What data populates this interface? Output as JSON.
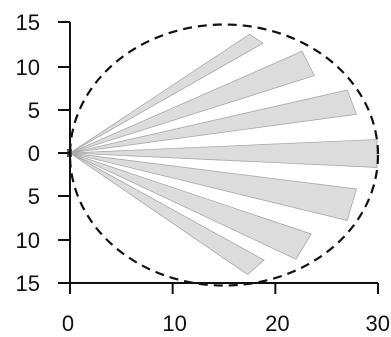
{
  "chart_data": {
    "type": "diagram",
    "y_ticks": [
      "15",
      "10",
      "5",
      "0",
      "5",
      "10",
      "15"
    ],
    "y_tick_values": [
      15,
      10,
      5,
      0,
      -5,
      -10,
      -15
    ],
    "x_ticks": [
      "0",
      "10",
      "20",
      "30"
    ],
    "x_tick_values": [
      0,
      10,
      20,
      30
    ],
    "xlim": [
      0,
      30
    ],
    "ylim": [
      -15,
      15
    ],
    "coverage_ellipse": {
      "center_x": 15,
      "center_y": 0,
      "radius_x": 15,
      "radius_y": 14.5,
      "style": "dashed"
    },
    "origin": [
      0,
      0
    ],
    "beams": [
      {
        "tip": [
          [
            17.5,
            13.2
          ],
          [
            18.8,
            12.2
          ]
        ]
      },
      {
        "tip": [
          [
            22.6,
            11.3
          ],
          [
            23.8,
            8.6
          ]
        ]
      },
      {
        "tip": [
          [
            27.0,
            7.0
          ],
          [
            27.9,
            4.3
          ]
        ]
      },
      {
        "tip": [
          [
            29.9,
            1.5
          ],
          [
            29.9,
            -1.6
          ]
        ]
      },
      {
        "tip": [
          [
            27.9,
            -4.0
          ],
          [
            27.0,
            -7.5
          ]
        ]
      },
      {
        "tip": [
          [
            23.5,
            -9.0
          ],
          [
            22.0,
            -11.8
          ]
        ]
      },
      {
        "tip": [
          [
            18.9,
            -11.9
          ],
          [
            17.3,
            -13.5
          ]
        ]
      }
    ],
    "grid": false
  }
}
